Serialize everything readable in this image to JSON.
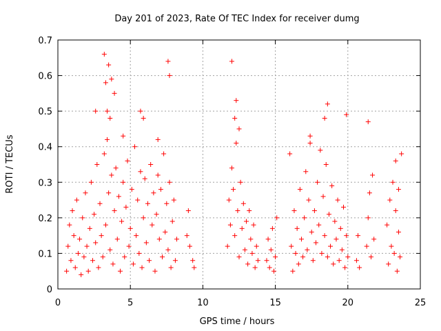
{
  "chart_data": {
    "type": "scatter",
    "title": "Day 201 of 2023, Rate Of TEC Index for receiver dumg",
    "xlabel": "GPS time / hours",
    "ylabel": "ROTI / TECUs",
    "xlim": [
      0,
      25
    ],
    "ylim": [
      0,
      0.7
    ],
    "xticks": [
      0,
      5,
      10,
      15,
      20,
      25
    ],
    "yticks": [
      0,
      0.1,
      0.2,
      0.3,
      0.4,
      0.5,
      0.6,
      0.7
    ],
    "xtick_labels": [
      "0",
      "5",
      "10",
      "15",
      "20",
      "25"
    ],
    "ytick_labels": [
      "0",
      "0.1",
      "0.2",
      "0.3",
      "0.4",
      "0.5",
      "0.6",
      "0.7"
    ],
    "grid": true,
    "marker": "plus",
    "color": "#ff0000",
    "series": [
      {
        "x": [
          0.6,
          0.7,
          0.8,
          0.9,
          1.0,
          1.1,
          1.2,
          1.3,
          1.4,
          1.5,
          1.6,
          1.7,
          1.8,
          1.9,
          2.0,
          2.1,
          2.2,
          2.3,
          2.4,
          2.5,
          2.6,
          2.7,
          2.8,
          2.9,
          3.0,
          3.1,
          3.2,
          3.3,
          3.4,
          3.5,
          3.6,
          3.7,
          3.8,
          3.9,
          4.0,
          4.1,
          4.2,
          4.3,
          4.4,
          4.5,
          4.6,
          4.7,
          4.8,
          4.9,
          5.0,
          5.1,
          5.2,
          5.3,
          5.4,
          5.5,
          5.6,
          5.7,
          5.8,
          5.9,
          6.0,
          6.1,
          6.2,
          6.3,
          6.4,
          6.5,
          6.6,
          6.7,
          6.8,
          6.9,
          7.0,
          7.1,
          7.2,
          7.3,
          7.4,
          7.5,
          7.6,
          7.7,
          7.8,
          7.9,
          8.0,
          8.1,
          8.2,
          3.2,
          3.3,
          3.5,
          3.6,
          3.7,
          3.9,
          3.4,
          2.6,
          4.5,
          5.7,
          5.9,
          6.9,
          7.6,
          7.7,
          8.9,
          9.0,
          9.1,
          9.3,
          9.4,
          11.7,
          11.8,
          11.9,
          12.0,
          12.1,
          12.2,
          12.3,
          12.4,
          12.5,
          12.6,
          12.7,
          12.8,
          12.9,
          13.0,
          13.1,
          13.2,
          13.3,
          13.4,
          13.5,
          13.6,
          13.7,
          13.8,
          12.0,
          12.3,
          12.2,
          12.5,
          14.4,
          14.5,
          14.6,
          14.7,
          14.8,
          14.9,
          15.0,
          15.1,
          16.0,
          16.1,
          16.2,
          16.3,
          16.4,
          16.5,
          16.6,
          16.7,
          16.8,
          16.9,
          17.0,
          17.1,
          17.2,
          17.3,
          17.4,
          17.5,
          17.6,
          17.7,
          17.8,
          17.9,
          18.0,
          18.1,
          18.2,
          18.3,
          18.4,
          18.5,
          18.6,
          18.7,
          18.8,
          18.9,
          19.0,
          19.1,
          19.2,
          19.3,
          19.4,
          19.5,
          19.6,
          19.7,
          19.8,
          19.9,
          20.0,
          18.6,
          18.4,
          19.9,
          17.4,
          20.6,
          20.7,
          20.8,
          21.3,
          21.4,
          21.5,
          21.6,
          21.7,
          21.8,
          21.4,
          22.7,
          22.8,
          22.9,
          23.0,
          23.1,
          23.2,
          23.3,
          23.4,
          23.5,
          23.6,
          23.7,
          23.3,
          23.5
        ],
        "y": [
          0.05,
          0.12,
          0.18,
          0.08,
          0.22,
          0.15,
          0.06,
          0.25,
          0.1,
          0.14,
          0.04,
          0.2,
          0.09,
          0.27,
          0.12,
          0.05,
          0.17,
          0.3,
          0.08,
          0.21,
          0.13,
          0.35,
          0.06,
          0.24,
          0.15,
          0.09,
          0.38,
          0.18,
          0.42,
          0.27,
          0.11,
          0.32,
          0.07,
          0.22,
          0.34,
          0.14,
          0.26,
          0.05,
          0.19,
          0.3,
          0.09,
          0.23,
          0.36,
          0.12,
          0.17,
          0.28,
          0.07,
          0.4,
          0.15,
          0.25,
          0.1,
          0.33,
          0.06,
          0.2,
          0.31,
          0.13,
          0.24,
          0.08,
          0.35,
          0.18,
          0.27,
          0.05,
          0.21,
          0.32,
          0.14,
          0.28,
          0.09,
          0.38,
          0.16,
          0.24,
          0.11,
          0.3,
          0.06,
          0.19,
          0.25,
          0.08,
          0.14,
          0.66,
          0.58,
          0.63,
          0.48,
          0.59,
          0.55,
          0.5,
          0.5,
          0.43,
          0.5,
          0.48,
          0.42,
          0.64,
          0.6,
          0.15,
          0.22,
          0.12,
          0.08,
          0.06,
          0.12,
          0.25,
          0.18,
          0.34,
          0.28,
          0.15,
          0.41,
          0.22,
          0.09,
          0.3,
          0.17,
          0.24,
          0.11,
          0.19,
          0.07,
          0.22,
          0.14,
          0.1,
          0.18,
          0.06,
          0.12,
          0.08,
          0.64,
          0.53,
          0.48,
          0.45,
          0.08,
          0.14,
          0.06,
          0.11,
          0.17,
          0.05,
          0.09,
          0.2,
          0.38,
          0.12,
          0.05,
          0.22,
          0.1,
          0.17,
          0.07,
          0.28,
          0.14,
          0.09,
          0.2,
          0.33,
          0.11,
          0.25,
          0.43,
          0.16,
          0.08,
          0.22,
          0.13,
          0.3,
          0.18,
          0.39,
          0.1,
          0.26,
          0.15,
          0.35,
          0.09,
          0.21,
          0.12,
          0.29,
          0.07,
          0.19,
          0.14,
          0.25,
          0.08,
          0.17,
          0.11,
          0.23,
          0.06,
          0.15,
          0.09,
          0.52,
          0.48,
          0.49,
          0.41,
          0.08,
          0.15,
          0.06,
          0.12,
          0.2,
          0.27,
          0.09,
          0.32,
          0.14,
          0.47,
          0.18,
          0.07,
          0.25,
          0.12,
          0.3,
          0.1,
          0.22,
          0.05,
          0.16,
          0.09,
          0.38,
          0.36,
          0.28
        ]
      }
    ]
  }
}
